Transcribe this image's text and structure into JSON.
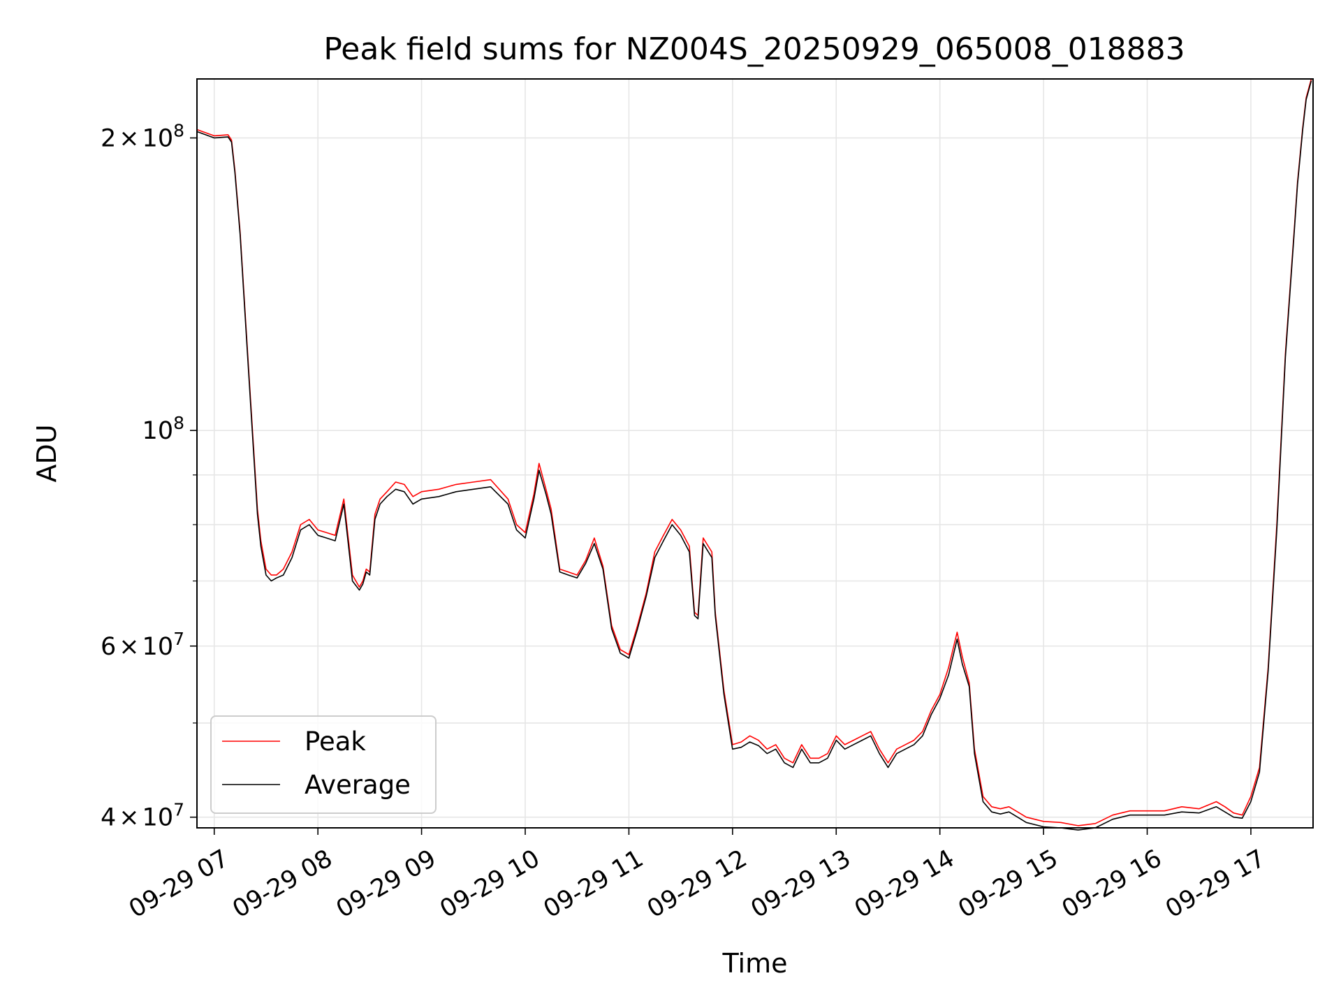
{
  "chart_data": {
    "type": "line",
    "title": "Peak field sums for NZ004S_20250929_065008_018883",
    "xlabel": "Time",
    "ylabel": "ADU",
    "yscale": "log",
    "ylim": [
      39000000,
      230000000
    ],
    "xlim": [
      "09-29 06:50",
      "09-29 17:36"
    ],
    "grid": true,
    "legend_position": "lower-left",
    "x_ticks": [
      "09-29 07",
      "09-29 08",
      "09-29 09",
      "09-29 10",
      "09-29 11",
      "09-29 12",
      "09-29 13",
      "09-29 14",
      "09-29 15",
      "09-29 16",
      "09-29 17"
    ],
    "y_ticks": [
      {
        "value": 40000000,
        "mantissa": "4",
        "exp": "7"
      },
      {
        "value": 60000000,
        "mantissa": "6",
        "exp": "7"
      },
      {
        "value": 100000000,
        "mantissa": "",
        "exp": "8"
      },
      {
        "value": 200000000,
        "mantissa": "2",
        "exp": "8"
      }
    ],
    "y_minor_ticks": [
      50000000,
      70000000,
      80000000,
      90000000
    ],
    "x": [
      "09-29 06:50",
      "09-29 07:00",
      "09-29 07:08",
      "09-29 07:10",
      "09-29 07:12",
      "09-29 07:15",
      "09-29 07:20",
      "09-29 07:25",
      "09-29 07:27",
      "09-29 07:30",
      "09-29 07:33",
      "09-29 07:36",
      "09-29 07:40",
      "09-29 07:45",
      "09-29 07:50",
      "09-29 07:55",
      "09-29 08:00",
      "09-29 08:05",
      "09-29 08:10",
      "09-29 08:15",
      "09-29 08:20",
      "09-29 08:24",
      "09-29 08:26",
      "09-29 08:28",
      "09-29 08:30",
      "09-29 08:33",
      "09-29 08:36",
      "09-29 08:40",
      "09-29 08:45",
      "09-29 08:50",
      "09-29 08:55",
      "09-29 09:00",
      "09-29 09:10",
      "09-29 09:20",
      "09-29 09:30",
      "09-29 09:40",
      "09-29 09:50",
      "09-29 09:55",
      "09-29 10:00",
      "09-29 10:05",
      "09-29 10:08",
      "09-29 10:12",
      "09-29 10:15",
      "09-29 10:20",
      "09-29 10:25",
      "09-29 10:30",
      "09-29 10:35",
      "09-29 10:40",
      "09-29 10:45",
      "09-29 10:50",
      "09-29 10:55",
      "09-29 11:00",
      "09-29 11:05",
      "09-29 11:10",
      "09-29 11:15",
      "09-29 11:20",
      "09-29 11:25",
      "09-29 11:30",
      "09-29 11:35",
      "09-29 11:38",
      "09-29 11:40",
      "09-29 11:43",
      "09-29 11:45",
      "09-29 11:48",
      "09-29 11:50",
      "09-29 11:55",
      "09-29 12:00",
      "09-29 12:05",
      "09-29 12:10",
      "09-29 12:15",
      "09-29 12:20",
      "09-29 12:25",
      "09-29 12:30",
      "09-29 12:35",
      "09-29 12:40",
      "09-29 12:45",
      "09-29 12:50",
      "09-29 12:55",
      "09-29 13:00",
      "09-29 13:05",
      "09-29 13:10",
      "09-29 13:15",
      "09-29 13:20",
      "09-29 13:25",
      "09-29 13:30",
      "09-29 13:35",
      "09-29 13:40",
      "09-29 13:45",
      "09-29 13:50",
      "09-29 13:55",
      "09-29 14:00",
      "09-29 14:05",
      "09-29 14:10",
      "09-29 14:13",
      "09-29 14:17",
      "09-29 14:20",
      "09-29 14:25",
      "09-29 14:30",
      "09-29 14:35",
      "09-29 14:40",
      "09-29 14:45",
      "09-29 14:50",
      "09-29 15:00",
      "09-29 15:10",
      "09-29 15:20",
      "09-29 15:30",
      "09-29 15:40",
      "09-29 15:50",
      "09-29 16:00",
      "09-29 16:10",
      "09-29 16:20",
      "09-29 16:30",
      "09-29 16:40",
      "09-29 16:45",
      "09-29 16:50",
      "09-29 16:55",
      "09-29 17:00",
      "09-29 17:05",
      "09-29 17:10",
      "09-29 17:15",
      "09-29 17:20",
      "09-29 17:25",
      "09-29 17:27",
      "09-29 17:30",
      "09-29 17:32",
      "09-29 17:35"
    ],
    "series": [
      {
        "name": "Peak",
        "color": "#ff0000",
        "values": [
          204000000,
          201000000,
          201500000,
          199000000,
          185000000,
          160000000,
          115000000,
          83000000,
          77000000,
          72000000,
          71000000,
          71000000,
          72000000,
          75000000,
          80000000,
          81000000,
          79000000,
          78500000,
          78000000,
          85000000,
          71000000,
          69000000,
          70000000,
          72000000,
          71500000,
          82000000,
          85000000,
          86500000,
          88500000,
          88000000,
          85500000,
          86500000,
          87000000,
          88000000,
          88500000,
          89000000,
          85000000,
          80000000,
          78500000,
          86000000,
          92500000,
          87000000,
          83000000,
          72000000,
          71500000,
          71000000,
          73500000,
          77500000,
          72500000,
          63000000,
          59500000,
          58800000,
          63000000,
          68000000,
          75000000,
          78000000,
          81000000,
          79000000,
          76000000,
          65000000,
          64500000,
          77500000,
          76500000,
          75000000,
          65000000,
          54000000,
          47500000,
          47800000,
          48500000,
          48000000,
          47000000,
          47500000,
          46000000,
          45500000,
          47500000,
          46000000,
          46000000,
          46500000,
          48500000,
          47500000,
          48000000,
          48500000,
          49000000,
          47000000,
          45500000,
          47000000,
          47500000,
          48000000,
          49000000,
          51500000,
          53500000,
          57000000,
          62000000,
          58500000,
          55000000,
          47000000,
          42000000,
          41000000,
          40800000,
          41000000,
          40500000,
          40000000,
          39600000,
          39500000,
          39200000,
          39400000,
          40200000,
          40600000,
          40600000,
          40600000,
          41000000,
          40800000,
          41500000,
          41000000,
          40400000,
          40200000,
          42000000,
          45000000,
          57000000,
          80000000,
          120000000,
          160000000,
          180000000,
          205000000,
          220000000,
          230000000
        ]
      },
      {
        "name": "Average",
        "color": "#000000",
        "values": [
          203000000,
          200000000,
          200500000,
          198000000,
          184000000,
          159000000,
          114000000,
          82000000,
          76000000,
          71000000,
          70000000,
          70500000,
          71000000,
          74000000,
          79000000,
          80000000,
          78000000,
          77500000,
          77000000,
          84000000,
          70000000,
          68500000,
          69500000,
          71500000,
          71000000,
          81000000,
          84000000,
          85500000,
          87000000,
          86500000,
          84000000,
          85000000,
          85500000,
          86500000,
          87000000,
          87500000,
          84000000,
          79000000,
          77500000,
          85000000,
          91000000,
          86000000,
          82000000,
          71500000,
          71000000,
          70500000,
          73000000,
          76500000,
          72000000,
          62500000,
          59000000,
          58300000,
          62500000,
          67500000,
          74000000,
          77000000,
          80000000,
          78000000,
          75000000,
          64500000,
          64000000,
          76500000,
          75500000,
          74000000,
          64500000,
          53500000,
          47000000,
          47200000,
          47800000,
          47400000,
          46500000,
          47000000,
          45500000,
          45000000,
          47000000,
          45500000,
          45500000,
          46000000,
          48000000,
          47000000,
          47500000,
          48000000,
          48500000,
          46500000,
          45000000,
          46500000,
          47000000,
          47500000,
          48500000,
          51000000,
          53000000,
          56000000,
          61000000,
          57500000,
          54500000,
          46500000,
          41500000,
          40500000,
          40300000,
          40500000,
          40000000,
          39500000,
          39100000,
          39000000,
          38800000,
          39000000,
          39800000,
          40200000,
          40200000,
          40200000,
          40500000,
          40400000,
          41000000,
          40500000,
          40000000,
          39900000,
          41500000,
          44500000,
          56500000,
          79000000,
          119000000,
          159000000,
          179000000,
          204000000,
          219000000,
          229000000
        ]
      }
    ]
  }
}
